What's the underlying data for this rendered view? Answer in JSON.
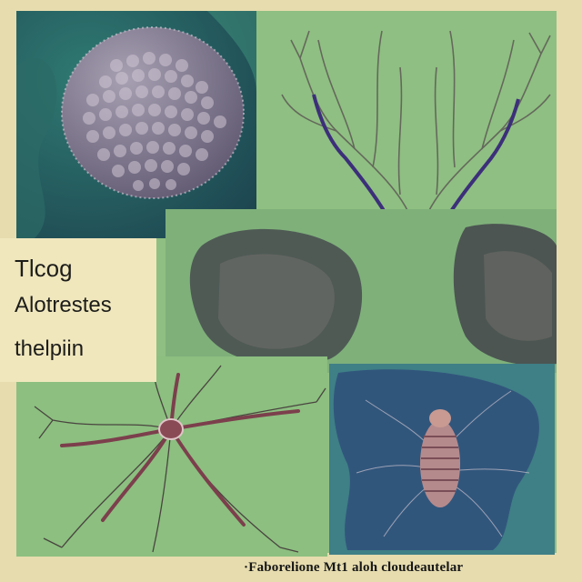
{
  "labels": {
    "line1": "Tlcog",
    "line2": "Alotrestes",
    "line3": "thelpiin"
  },
  "caption": "·Faborelione Mt1 aloh cloudeautelar",
  "colors": {
    "background": "#e6dcae",
    "panel_green": "#8fbf82",
    "panel_teal": "#27595e",
    "nerve_purple": "#3c2f7a",
    "axon_red": "#7c3f4c"
  }
}
